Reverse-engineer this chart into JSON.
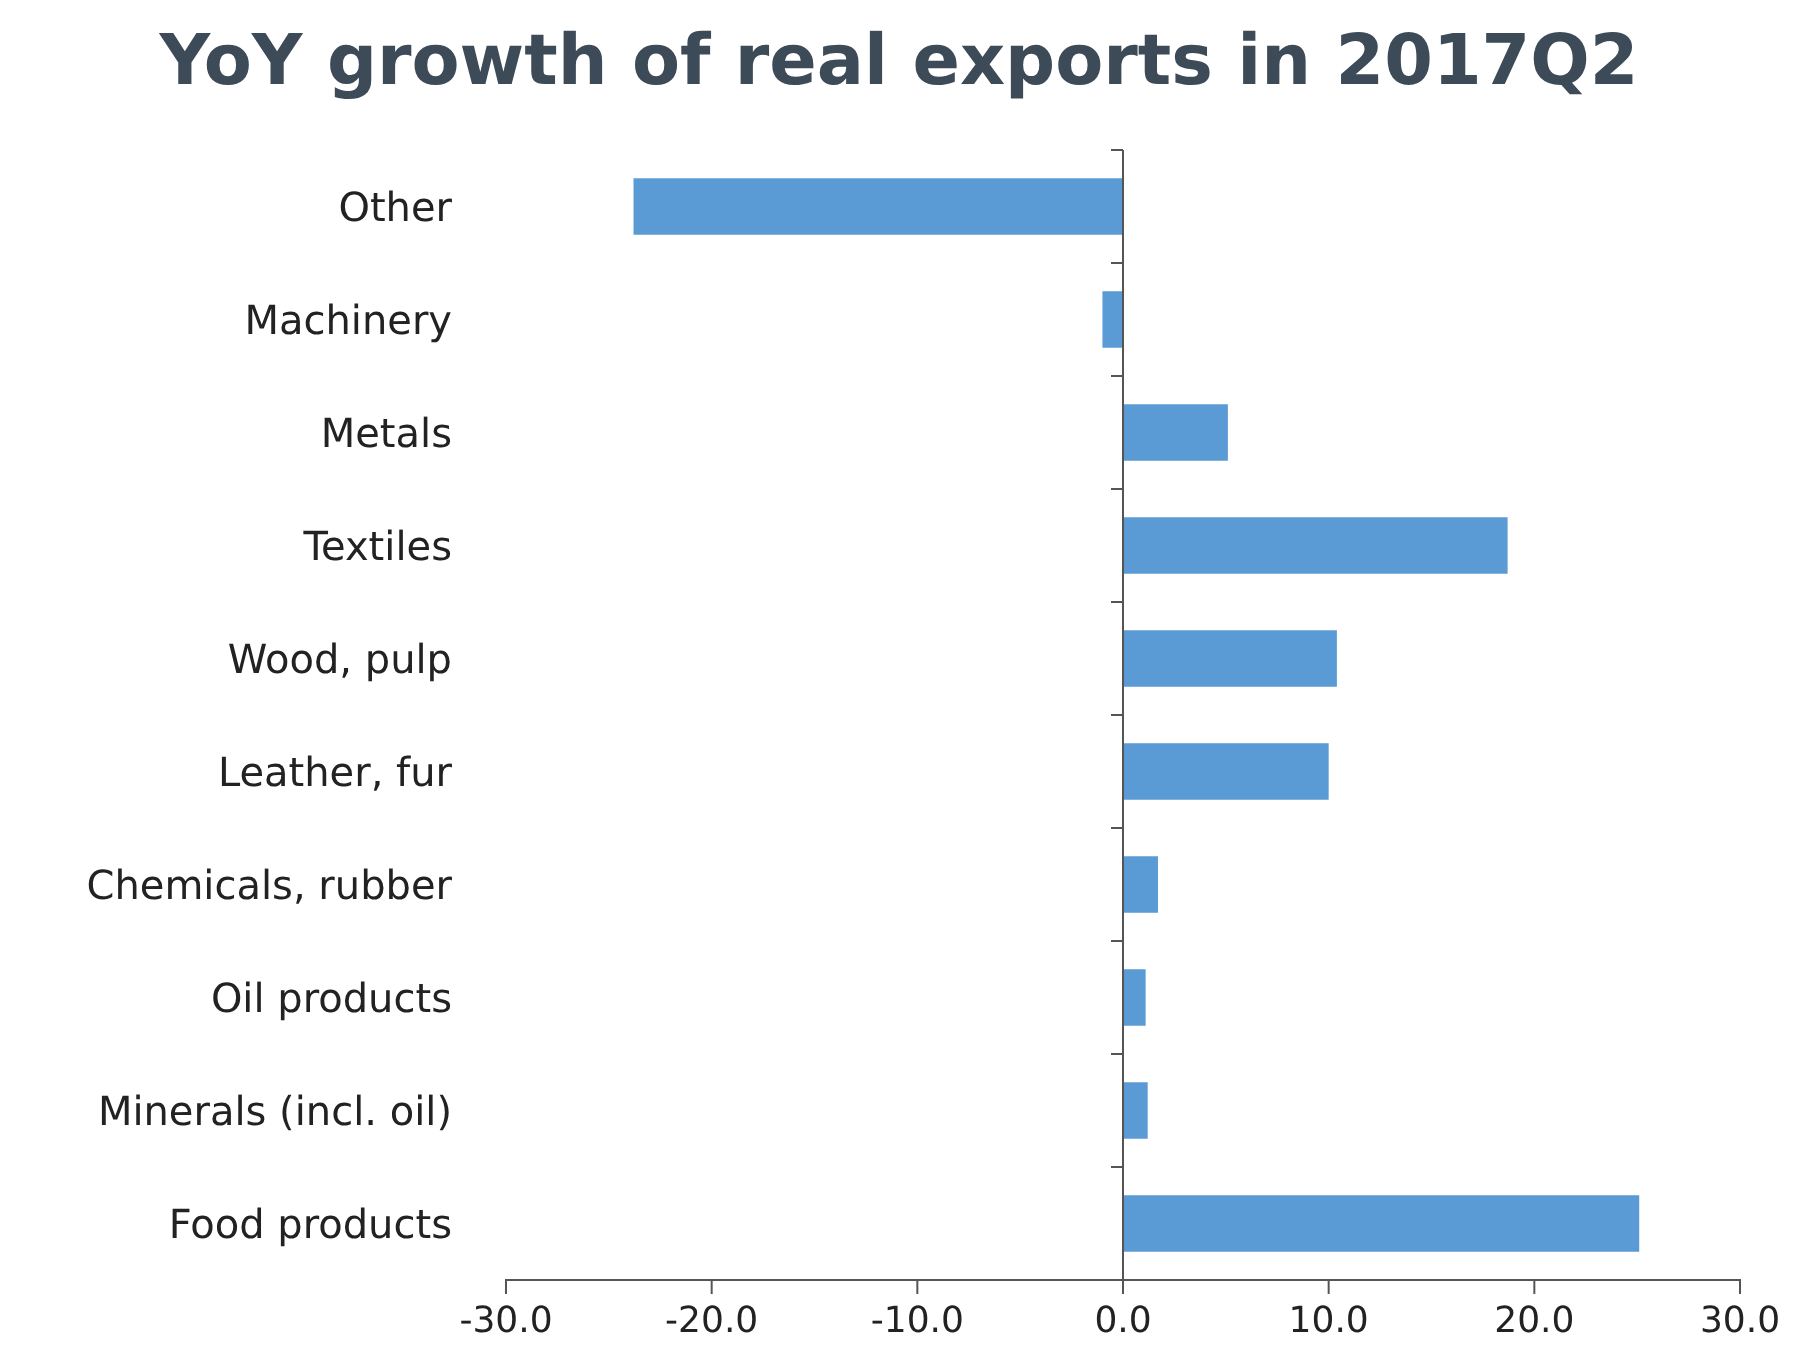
{
  "chart_data": {
    "type": "bar",
    "orientation": "horizontal",
    "title": "YoY growth of real exports in 2017Q2",
    "categories": [
      "Other",
      "Machinery",
      "Metals",
      "Textiles",
      "Wood, pulp",
      "Leather, fur",
      "Chemicals, rubber",
      "Oil products",
      "Minerals (incl. oil)",
      "Food products"
    ],
    "values": [
      -23.8,
      -1.0,
      5.1,
      18.7,
      10.4,
      10.0,
      1.7,
      1.1,
      1.2,
      25.1
    ],
    "color": "#5b9bd5",
    "xlim": [
      -30,
      30
    ],
    "xticks": [
      {
        "value": -30,
        "label": "-30.0"
      },
      {
        "value": -20,
        "label": "-20.0"
      },
      {
        "value": -10,
        "label": "-10.0"
      },
      {
        "value": 0,
        "label": "0.0"
      },
      {
        "value": 10,
        "label": "10.0"
      },
      {
        "value": 20,
        "label": "20.0"
      },
      {
        "value": 30,
        "label": "30.0"
      }
    ],
    "xlabel": null
  }
}
